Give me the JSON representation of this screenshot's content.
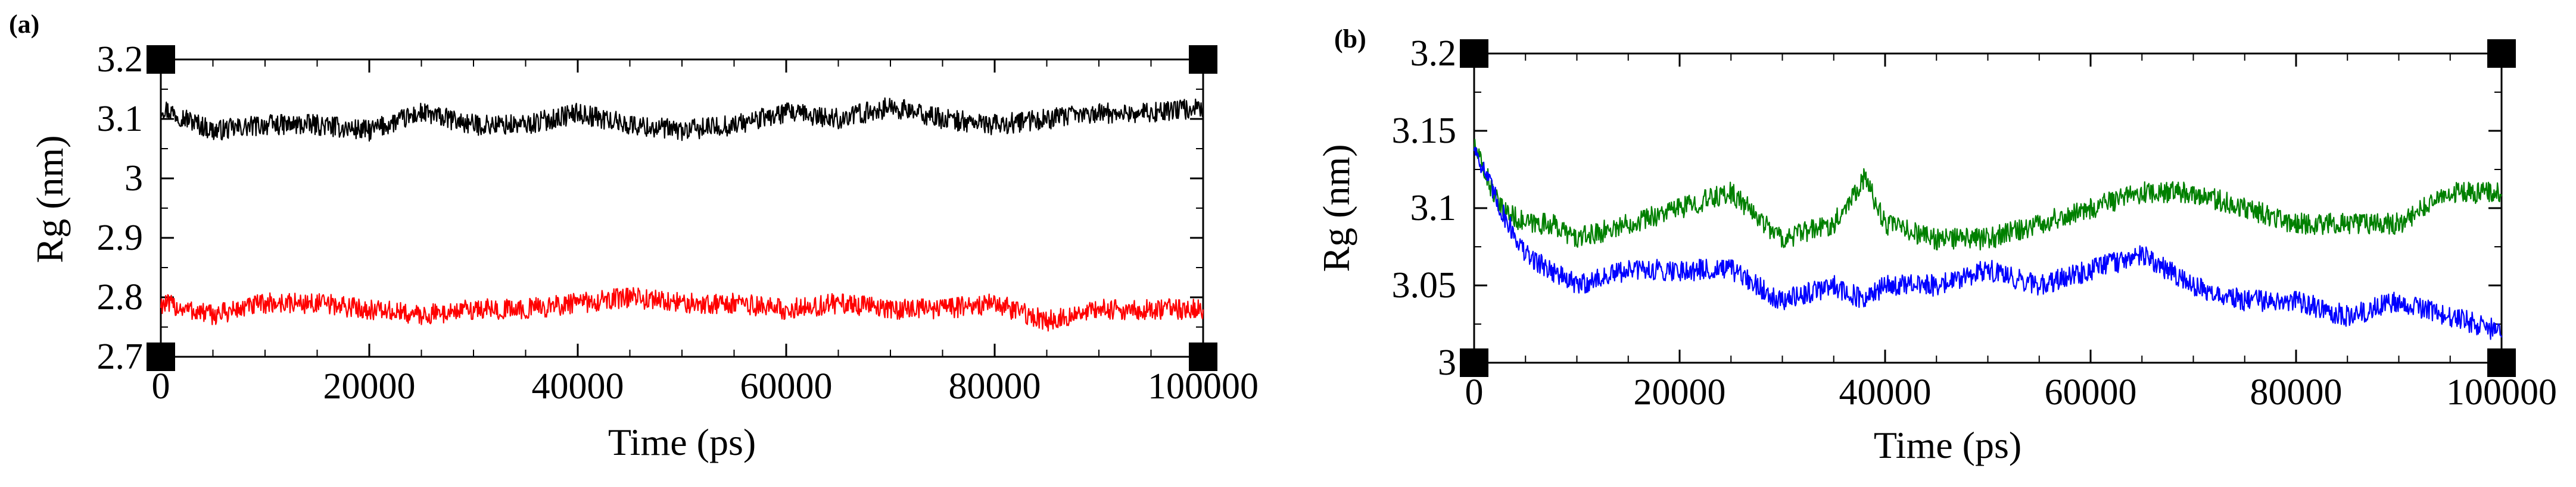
{
  "figure": {
    "panels": [
      {
        "label": "(a)",
        "xlabel": "Time (ps)",
        "ylabel": "Rg (nm)",
        "xticks": [
          "0",
          "20000",
          "40000",
          "60000",
          "80000",
          "100000"
        ],
        "yticks": [
          "2.7",
          "2.8",
          "2.9",
          "3",
          "3.1",
          "3.2"
        ]
      },
      {
        "label": "(b)",
        "xlabel": "Time (ps)",
        "ylabel": "Rg (nm)",
        "xticks": [
          "0",
          "20000",
          "40000",
          "60000",
          "80000",
          "100000"
        ],
        "yticks": [
          "3",
          "3.05",
          "3.1",
          "3.15",
          "3.2"
        ]
      }
    ]
  },
  "chart_data": [
    {
      "type": "line",
      "panel": "(a)",
      "xlabel": "Time (ps)",
      "ylabel": "Rg (nm)",
      "xlim": [
        0,
        100000
      ],
      "ylim": [
        2.7,
        3.2
      ],
      "x": [
        0,
        5000,
        10000,
        15000,
        20000,
        25000,
        30000,
        35000,
        40000,
        45000,
        50000,
        55000,
        60000,
        65000,
        70000,
        75000,
        80000,
        85000,
        90000,
        95000,
        100000
      ],
      "series": [
        {
          "color": "#000000",
          "values": [
            3.12,
            3.08,
            3.09,
            3.09,
            3.08,
            3.11,
            3.09,
            3.09,
            3.11,
            3.09,
            3.08,
            3.09,
            3.11,
            3.1,
            3.12,
            3.1,
            3.09,
            3.1,
            3.11,
            3.11,
            3.12
          ]
        },
        {
          "color": "#ff0000",
          "values": [
            2.79,
            2.77,
            2.79,
            2.79,
            2.78,
            2.77,
            2.78,
            2.78,
            2.79,
            2.8,
            2.79,
            2.79,
            2.78,
            2.79,
            2.78,
            2.78,
            2.79,
            2.76,
            2.78,
            2.78,
            2.78
          ]
        }
      ],
      "grid": false
    },
    {
      "type": "line",
      "panel": "(b)",
      "xlabel": "Time (ps)",
      "ylabel": "Rg (nm)",
      "xlim": [
        0,
        100000
      ],
      "ylim": [
        3.0,
        3.2
      ],
      "x": [
        0,
        2500,
        5000,
        7500,
        10000,
        15000,
        20000,
        25000,
        30000,
        35000,
        38000,
        40000,
        45000,
        50000,
        55000,
        60000,
        65000,
        70000,
        75000,
        80000,
        85000,
        90000,
        95000,
        100000
      ],
      "series": [
        {
          "color": "#008000",
          "values": [
            3.14,
            3.1,
            3.09,
            3.09,
            3.08,
            3.09,
            3.1,
            3.11,
            3.08,
            3.09,
            3.12,
            3.09,
            3.08,
            3.08,
            3.09,
            3.1,
            3.11,
            3.11,
            3.1,
            3.09,
            3.09,
            3.09,
            3.11,
            3.11
          ]
        },
        {
          "color": "#0000ff",
          "values": [
            3.14,
            3.1,
            3.07,
            3.06,
            3.05,
            3.06,
            3.06,
            3.06,
            3.04,
            3.05,
            3.04,
            3.05,
            3.05,
            3.06,
            3.05,
            3.06,
            3.07,
            3.05,
            3.04,
            3.04,
            3.03,
            3.04,
            3.03,
            3.02
          ]
        }
      ],
      "grid": false
    }
  ]
}
